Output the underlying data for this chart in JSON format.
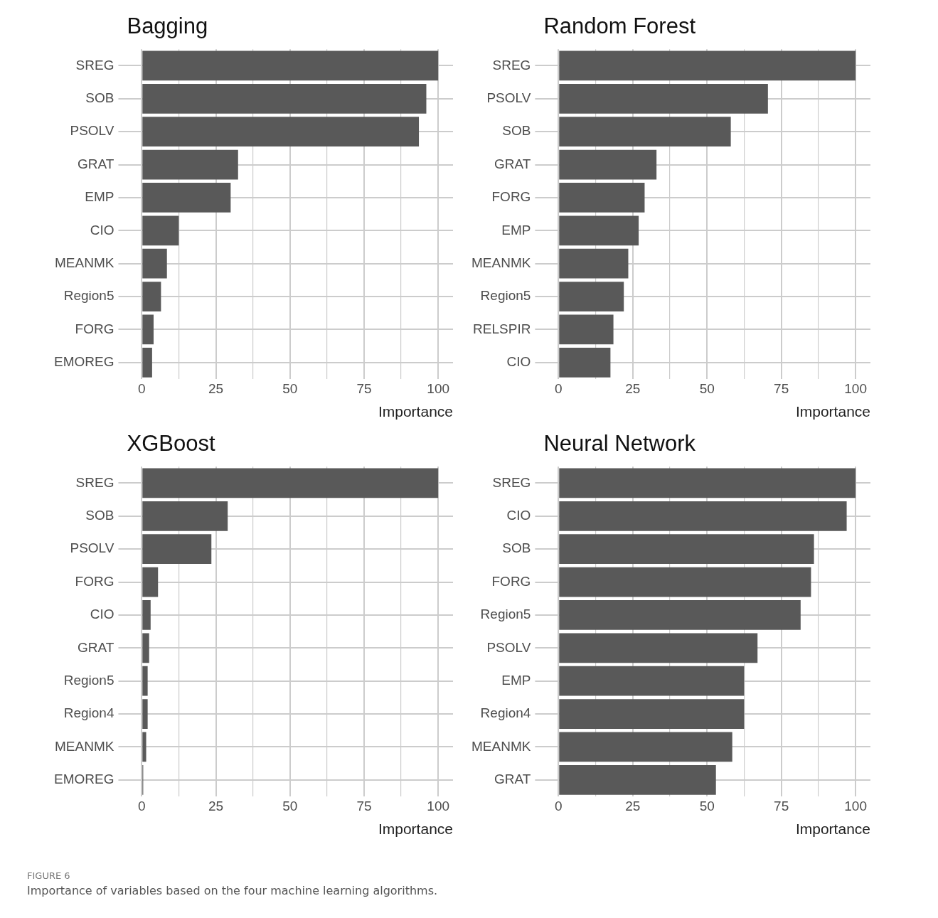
{
  "chart_data": [
    {
      "type": "bar",
      "orientation": "horizontal",
      "title": "Bagging",
      "xlabel": "Importance",
      "categories": [
        "SREG",
        "SOB",
        "PSOLV",
        "GRAT",
        "EMP",
        "CIO",
        "MEANMK",
        "Region5",
        "FORG",
        "EMOREG"
      ],
      "values": [
        100,
        96,
        93.5,
        32.5,
        30,
        12.5,
        8.5,
        6.5,
        4,
        3.5
      ],
      "color": "#595959",
      "xlim": [
        -5,
        105
      ],
      "xticks": [
        0,
        {
          "value": 12.5,
          "label": null
        },
        25,
        {
          "value": 37.5,
          "label": null
        },
        50,
        {
          "value": 62.5,
          "label": null
        },
        75,
        {
          "value": 87.5,
          "label": null
        },
        100
      ],
      "grid": true
    },
    {
      "type": "bar",
      "orientation": "horizontal",
      "title": "Random Forest",
      "xlabel": "Importance",
      "categories": [
        "SREG",
        "PSOLV",
        "SOB",
        "GRAT",
        "FORG",
        "EMP",
        "MEANMK",
        "Region5",
        "RELSPIR",
        "CIO"
      ],
      "values": [
        100,
        70.5,
        58,
        33,
        29,
        27,
        23.5,
        22,
        18.5,
        17.5
      ],
      "color": "#595959",
      "xlim": [
        -5,
        105
      ],
      "xticks": [
        0,
        {
          "value": 12.5,
          "label": null
        },
        25,
        {
          "value": 37.5,
          "label": null
        },
        50,
        {
          "value": 62.5,
          "label": null
        },
        75,
        {
          "value": 87.5,
          "label": null
        },
        100
      ],
      "grid": true
    },
    {
      "type": "bar",
      "orientation": "horizontal",
      "title": "XGBoost",
      "xlabel": "Importance",
      "categories": [
        "SREG",
        "SOB",
        "PSOLV",
        "FORG",
        "CIO",
        "GRAT",
        "Region5",
        "Region4",
        "MEANMK",
        "EMOREG"
      ],
      "values": [
        100,
        29,
        23.5,
        5.5,
        3,
        2.5,
        2,
        2,
        1.5,
        0.5
      ],
      "color": "#595959",
      "xlim": [
        -5,
        105
      ],
      "xticks": [
        0,
        {
          "value": 12.5,
          "label": null
        },
        25,
        {
          "value": 37.5,
          "label": null
        },
        50,
        {
          "value": 62.5,
          "label": null
        },
        75,
        {
          "value": 87.5,
          "label": null
        },
        100
      ],
      "grid": true
    },
    {
      "type": "bar",
      "orientation": "horizontal",
      "title": "Neural Network",
      "xlabel": "Importance",
      "categories": [
        "SREG",
        "CIO",
        "SOB",
        "FORG",
        "Region5",
        "PSOLV",
        "EMP",
        "Region4",
        "MEANMK",
        "GRAT"
      ],
      "values": [
        100,
        97,
        86,
        85,
        81.5,
        67,
        62.5,
        62.5,
        58.5,
        53
      ],
      "color": "#595959",
      "xlim": [
        -5,
        105
      ],
      "xticks": [
        0,
        {
          "value": 12.5,
          "label": null
        },
        25,
        {
          "value": 37.5,
          "label": null
        },
        50,
        {
          "value": 62.5,
          "label": null
        },
        75,
        {
          "value": 87.5,
          "label": null
        },
        100
      ],
      "grid": true,
      "annotations": [
        "FIGURE 6",
        "Importance of variables based on the four machine learning algorithms."
      ]
    }
  ]
}
